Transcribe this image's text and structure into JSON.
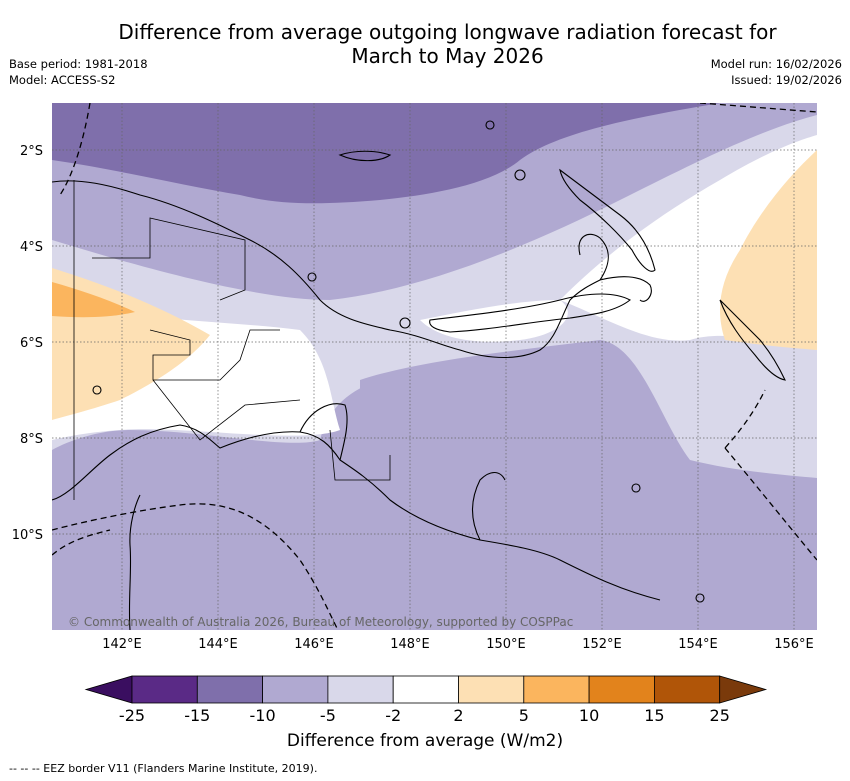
{
  "title_line1": "Difference from average outgoing longwave radiation forecast for",
  "title_line2": "March to May 2026",
  "base_period": "Base period: 1981-2018",
  "model": "Model: ACCESS-S2",
  "model_run": "Model run: 16/02/2026",
  "issued": "Issued: 19/02/2026",
  "copyright": "© Commonwealth of Australia 2026, Bureau of Meteorology, supported by COSPPac",
  "lat_labels": [
    "2°S",
    "4°S",
    "6°S",
    "8°S",
    "10°S"
  ],
  "lon_labels": [
    "142°E",
    "144°E",
    "146°E",
    "148°E",
    "150°E",
    "152°E",
    "154°E",
    "156°E"
  ],
  "colorbar": {
    "label": "Difference from average (W/m2)",
    "ticks": [
      "-25",
      "-15",
      "-10",
      "-5",
      "-2",
      "2",
      "5",
      "10",
      "15",
      "25"
    ],
    "colors": [
      "#5a2a86",
      "#7f6fab",
      "#b0a9d1",
      "#d9d8ea",
      "#ffffff",
      "#fde0b4",
      "#fbb55e",
      "#e2831c",
      "#b05508"
    ],
    "under_color": "#3a0e60",
    "over_color": "#7a3a0b"
  },
  "footnote": "-- -- -- EEZ border V11 (Flanders Marine Institute, 2019)."
}
